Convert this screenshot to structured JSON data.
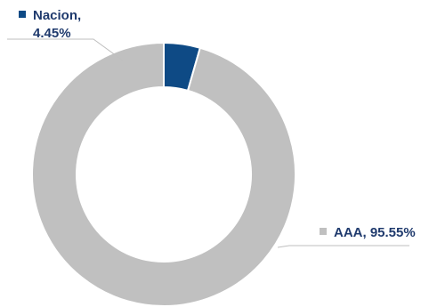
{
  "chart_data": {
    "type": "pie",
    "donut": true,
    "slices": [
      {
        "name": "Nacion",
        "value": 4.45,
        "label": "Nacion,",
        "value_label": "4.45%",
        "color": "#0e4a85"
      },
      {
        "name": "AAA",
        "value": 95.55,
        "label": "AAA, 95.55%",
        "color": "#c0c0c0"
      }
    ],
    "title": "",
    "legend": "none",
    "data_labels": "outside with leader lines"
  }
}
